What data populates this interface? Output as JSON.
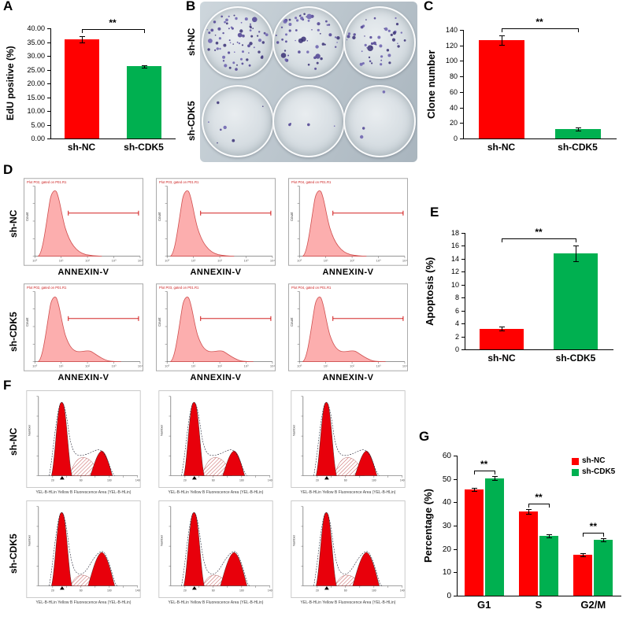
{
  "panel_labels": {
    "A": "A",
    "B": "B",
    "C": "C",
    "D": "D",
    "E": "E",
    "F": "F",
    "G": "G"
  },
  "panelB": {
    "row_labels": [
      "sh-NC",
      "sh-CDK5"
    ],
    "colony_dots": [
      [
        70,
        55,
        45
      ],
      [
        7,
        4,
        3
      ]
    ],
    "colony_colors": [
      "#4e4192",
      "#6a5fae",
      "#3a3076"
    ]
  },
  "panelD": {
    "row_labels": [
      "sh-NC",
      "sh-CDK5"
    ],
    "x_label": "ANNEXIN-V",
    "y_label": "Count",
    "plot_titles": [
      "Plot P02, gated on P01.R1",
      "Plot P03, gated on P01.R1",
      "Plot P04, gated on P01.R1",
      "Plot P02, gated on P01.R1",
      "Plot P03, gated on P01.R1",
      "Plot P04, gated on P01.R1"
    ]
  },
  "panelF": {
    "row_labels": [
      "sh-NC",
      "sh-CDK5"
    ],
    "x_caption": "YEL-B-HLin Yellow B Fluorescence Area (YEL-B-HLin)",
    "y_label": "Number"
  },
  "chart_data": [
    {
      "panel": "A",
      "type": "bar",
      "title": "",
      "categories": [
        "sh-NC",
        "sh-CDK5"
      ],
      "values": [
        36.0,
        26.2
      ],
      "errors": [
        1.2,
        0.4
      ],
      "colors": [
        "#ff0000",
        "#00b050"
      ],
      "ylabel": "EdU positive (%)",
      "xlabel": "",
      "ylim": [
        0,
        40
      ],
      "ystep": 5,
      "tick_decimals": 2,
      "significance": [
        {
          "from": 0,
          "to": 1,
          "label": "**"
        }
      ]
    },
    {
      "panel": "C",
      "type": "bar",
      "title": "",
      "categories": [
        "sh-NC",
        "sh-CDK5"
      ],
      "values": [
        127,
        12
      ],
      "errors": [
        6,
        2
      ],
      "colors": [
        "#ff0000",
        "#00b050"
      ],
      "ylabel": "Clone number",
      "xlabel": "",
      "ylim": [
        0,
        140
      ],
      "ystep": 20,
      "tick_decimals": 0,
      "significance": [
        {
          "from": 0,
          "to": 1,
          "label": "**"
        }
      ]
    },
    {
      "panel": "E",
      "type": "bar",
      "title": "",
      "categories": [
        "sh-NC",
        "sh-CDK5"
      ],
      "values": [
        3.2,
        14.8
      ],
      "errors": [
        0.3,
        1.2
      ],
      "colors": [
        "#ff0000",
        "#00b050"
      ],
      "ylabel": "Apoptosis (%)",
      "xlabel": "",
      "ylim": [
        0,
        18
      ],
      "ystep": 2,
      "tick_decimals": 0,
      "significance": [
        {
          "from": 0,
          "to": 1,
          "label": "**"
        }
      ]
    },
    {
      "panel": "G",
      "type": "bar",
      "title": "",
      "categories": [
        "G1",
        "S",
        "G2/M"
      ],
      "series": [
        {
          "name": "sh-NC",
          "color": "#ff0000",
          "values": [
            45.5,
            36.2,
            17.4
          ],
          "errors": [
            0.8,
            1.0,
            0.7
          ]
        },
        {
          "name": "sh-CDK5",
          "color": "#00b050",
          "values": [
            50.3,
            25.6,
            23.9
          ],
          "errors": [
            0.9,
            0.8,
            0.8
          ]
        }
      ],
      "ylabel": "Percentage (%)",
      "xlabel": "",
      "ylim": [
        0,
        60
      ],
      "ystep": 10,
      "tick_decimals": 0,
      "legend_position": "top-right",
      "significance": [
        {
          "category": 0,
          "label": "**"
        },
        {
          "category": 1,
          "label": "**"
        },
        {
          "category": 2,
          "label": "**"
        }
      ]
    }
  ]
}
